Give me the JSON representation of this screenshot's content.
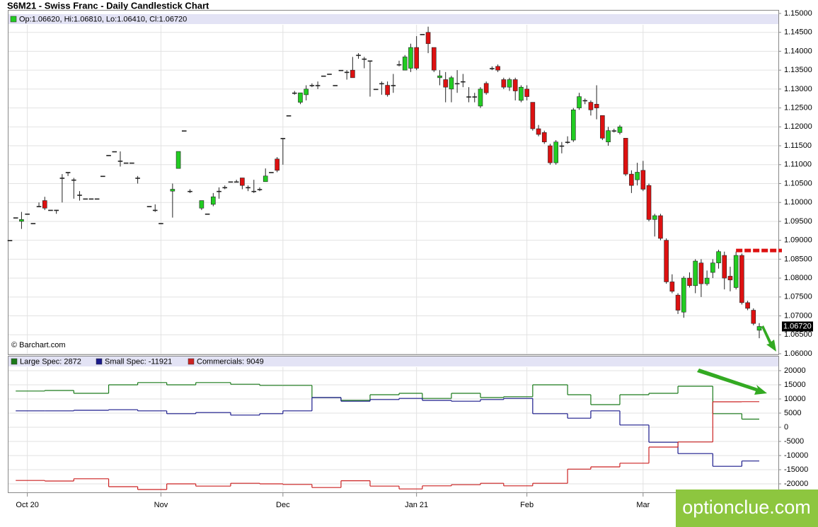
{
  "chart_data": [
    {
      "type": "candlestick",
      "title": "S6M21 - Swiss Franc - Daily Candlestick Chart",
      "header": "Op:1.06620, Hi:1.06810, Lo:1.06410, Cl:1.06720",
      "source": "© Barchart.com",
      "last_label": "1.06720",
      "up_color": "#22cc22",
      "down_color": "#dd1111",
      "grid": true,
      "resistance_line": {
        "value": 1.0873,
        "color": "#dd1111"
      },
      "categories": [
        null,
        null,
        null,
        "Oct 20",
        null,
        null,
        null,
        null,
        null,
        null,
        null,
        null,
        null,
        null,
        null,
        null,
        null,
        null,
        null,
        null,
        null,
        null,
        null,
        null,
        null,
        null,
        "Nov",
        null,
        null,
        null,
        null,
        null,
        null,
        null,
        null,
        null,
        null,
        null,
        null,
        null,
        null,
        null,
        null,
        null,
        null,
        null,
        null,
        "Dec",
        null,
        null,
        null,
        null,
        null,
        null,
        null,
        null,
        null,
        null,
        null,
        null,
        null,
        null,
        null,
        null,
        null,
        null,
        null,
        null,
        null,
        null,
        "Jan 21",
        null,
        null,
        null,
        null,
        null,
        null,
        null,
        null,
        null,
        null,
        null,
        null,
        null,
        null,
        null,
        null,
        null,
        null,
        "Feb",
        null,
        null,
        null,
        null,
        null,
        null,
        null,
        null,
        null,
        null,
        null,
        null,
        null,
        null,
        null,
        null,
        null,
        null,
        null,
        "Mar",
        null,
        null,
        null,
        null,
        null,
        null,
        null,
        null,
        null,
        null,
        null,
        null,
        null,
        null,
        null,
        null,
        null,
        null,
        null,
        null
      ],
      "open": [
        1.09,
        1.096,
        1.095,
        1.097,
        1.0945,
        1.099,
        1.1005,
        1.098,
        1.098,
        1.1065,
        1.108,
        1.106,
        1.102,
        1.101,
        1.101,
        1.101,
        1.107,
        1.1125,
        1.1135,
        1.111,
        1.1105,
        1.1105,
        1.1065,
        null,
        1.099,
        1.098,
        1.0945,
        null,
        1.103,
        1.109,
        1.119,
        1.103,
        null,
        1.0985,
        1.097,
        1.0995,
        1.103,
        1.104,
        1.1055,
        1.1055,
        1.1065,
        1.104,
        1.103,
        1.1035,
        1.1055,
        1.108,
        1.1115,
        1.117,
        1.123,
        1.129,
        1.1265,
        1.1285,
        1.131,
        1.131,
        1.1335,
        1.134,
        1.131,
        1.135,
        1.1345,
        1.135,
        1.139,
        1.138,
        1.1375,
        1.13,
        1.1315,
        1.131,
        1.131,
        1.1365,
        1.135,
        1.1355,
        1.141,
        1.1445,
        1.145,
        1.141,
        1.133,
        1.1325,
        1.13,
        1.1315,
        1.132,
        1.128,
        1.128,
        1.1255,
        1.1315,
        1.1355,
        1.136,
        1.1325,
        1.1305,
        1.1325,
        1.127,
        1.13,
        1.1265,
        1.1195,
        1.1185,
        1.115,
        1.1105,
        1.115,
        1.116,
        1.1165,
        1.125,
        1.127,
        1.1265,
        1.126,
        1.123,
        1.116,
        1.119,
        1.1185,
        1.117,
        1.1075,
        1.106,
        1.1085,
        1.1045,
        1.0955,
        1.0965,
        1.09,
        1.079,
        1.0755,
        1.071,
        1.08,
        1.078,
        1.084,
        1.0785,
        1.0815,
        1.084,
        1.086,
        1.0805,
        1.0775,
        1.086,
        1.0735,
        1.0715,
        1.0662
      ],
      "high": [
        1.09,
        1.096,
        1.0975,
        1.097,
        1.0945,
        1.1,
        1.1015,
        1.098,
        1.098,
        1.1075,
        1.108,
        1.1065,
        1.103,
        1.101,
        1.101,
        1.101,
        1.107,
        1.1125,
        1.1135,
        1.1135,
        1.1105,
        1.1105,
        1.107,
        null,
        1.099,
        1.0995,
        1.0945,
        null,
        1.105,
        1.1135,
        1.119,
        1.1035,
        null,
        1.1005,
        1.097,
        1.1025,
        1.104,
        1.1045,
        1.1055,
        1.106,
        1.1065,
        1.1045,
        1.106,
        1.104,
        1.109,
        1.108,
        1.112,
        1.117,
        1.123,
        1.1295,
        1.129,
        1.131,
        1.1315,
        1.132,
        1.1335,
        1.134,
        1.131,
        1.135,
        1.135,
        1.1385,
        1.1395,
        1.1385,
        1.1375,
        1.13,
        1.132,
        1.132,
        1.134,
        1.1375,
        1.139,
        1.142,
        1.144,
        1.1445,
        1.1465,
        1.141,
        1.135,
        1.1345,
        1.1335,
        1.135,
        1.134,
        1.1305,
        1.129,
        1.1305,
        1.132,
        1.136,
        1.1365,
        1.133,
        1.133,
        1.133,
        1.131,
        1.131,
        1.1265,
        1.1205,
        1.119,
        1.1155,
        1.1165,
        1.116,
        1.1175,
        1.125,
        1.129,
        1.1275,
        1.127,
        1.131,
        1.123,
        1.12,
        1.1195,
        1.1205,
        1.117,
        1.1085,
        1.1105,
        1.111,
        1.105,
        1.097,
        1.097,
        1.0905,
        1.081,
        1.076,
        1.0805,
        1.0815,
        1.085,
        1.085,
        1.082,
        1.085,
        1.0875,
        1.087,
        1.083,
        1.087,
        1.0865,
        1.074,
        1.072,
        1.0681
      ],
      "low": [
        1.09,
        1.096,
        1.093,
        1.097,
        1.0945,
        1.099,
        1.098,
        1.098,
        1.097,
        1.1,
        1.107,
        1.101,
        1.1005,
        1.101,
        1.101,
        1.101,
        1.107,
        1.1125,
        1.1135,
        1.1095,
        1.1105,
        1.1105,
        1.105,
        null,
        1.099,
        1.0975,
        1.0945,
        null,
        1.096,
        1.109,
        1.119,
        1.1025,
        null,
        1.098,
        1.097,
        1.099,
        1.101,
        1.1035,
        1.1055,
        1.1055,
        1.1035,
        1.103,
        1.1025,
        1.103,
        1.1055,
        1.108,
        1.108,
        1.11,
        1.123,
        1.1285,
        1.126,
        1.127,
        1.1305,
        1.13,
        1.1335,
        1.134,
        1.131,
        1.135,
        1.1325,
        1.133,
        1.138,
        1.1355,
        1.128,
        1.13,
        1.1285,
        1.128,
        1.129,
        1.136,
        1.135,
        1.1345,
        1.135,
        1.1445,
        1.1395,
        1.1345,
        1.131,
        1.1265,
        1.1265,
        1.129,
        1.1305,
        1.1265,
        1.1265,
        1.125,
        1.1285,
        1.135,
        1.1345,
        1.13,
        1.1295,
        1.127,
        1.1265,
        1.127,
        1.119,
        1.1175,
        1.1155,
        1.11,
        1.11,
        1.113,
        1.1155,
        1.116,
        1.1245,
        1.126,
        1.123,
        1.122,
        1.1165,
        1.115,
        1.1185,
        1.118,
        1.107,
        1.1025,
        1.1045,
        1.103,
        1.095,
        1.091,
        1.09,
        1.0785,
        1.076,
        1.0705,
        1.0695,
        1.0775,
        1.076,
        1.075,
        1.078,
        1.08,
        1.0825,
        1.077,
        1.0765,
        1.077,
        1.073,
        1.0715,
        1.0675,
        1.0641
      ],
      "close": [
        1.09,
        1.096,
        1.0955,
        1.097,
        1.0945,
        1.099,
        1.0985,
        1.098,
        1.098,
        1.1065,
        1.108,
        1.106,
        1.102,
        1.101,
        1.101,
        1.101,
        1.107,
        1.1125,
        1.1135,
        1.111,
        1.1105,
        1.1105,
        1.1065,
        null,
        1.099,
        1.098,
        1.0945,
        null,
        1.1035,
        1.1135,
        1.119,
        1.103,
        null,
        1.1005,
        1.097,
        1.1015,
        1.103,
        1.104,
        1.1055,
        1.1055,
        1.1045,
        1.104,
        1.103,
        1.1035,
        1.107,
        1.108,
        1.1085,
        1.117,
        1.123,
        1.129,
        1.129,
        1.13,
        1.131,
        1.131,
        1.1335,
        1.134,
        1.131,
        1.135,
        1.1345,
        1.133,
        1.139,
        1.138,
        1.1375,
        1.13,
        1.1315,
        1.1285,
        1.131,
        1.1365,
        1.1385,
        1.141,
        1.1355,
        1.1445,
        1.142,
        1.135,
        1.1335,
        1.1305,
        1.133,
        1.1315,
        1.132,
        1.128,
        1.128,
        1.13,
        1.129,
        1.1355,
        1.135,
        1.1305,
        1.1325,
        1.1295,
        1.1305,
        1.128,
        1.1195,
        1.118,
        1.116,
        1.1105,
        1.116,
        1.115,
        1.116,
        1.1245,
        1.128,
        1.127,
        1.1245,
        1.125,
        1.117,
        1.119,
        1.119,
        1.12,
        1.1075,
        1.1045,
        1.108,
        1.1035,
        1.0955,
        1.0965,
        1.0905,
        1.079,
        1.0765,
        1.0715,
        1.08,
        1.078,
        1.0845,
        1.0785,
        1.08,
        1.084,
        1.087,
        1.08,
        1.0795,
        1.086,
        1.0735,
        1.072,
        1.068,
        1.0672
      ],
      "ylim": [
        1.06,
        1.15
      ],
      "yticks": [
        {
          "value": 1.06,
          "label": "1.06000"
        },
        {
          "value": 1.065,
          "label": "1.06500"
        },
        {
          "value": 1.07,
          "label": "1.07000"
        },
        {
          "value": 1.075,
          "label": "1.07500"
        },
        {
          "value": 1.08,
          "label": "1.08000"
        },
        {
          "value": 1.085,
          "label": "1.08500"
        },
        {
          "value": 1.09,
          "label": "1.09000"
        },
        {
          "value": 1.095,
          "label": "1.09500"
        },
        {
          "value": 1.1,
          "label": "1.10000"
        },
        {
          "value": 1.105,
          "label": "1.10500"
        },
        {
          "value": 1.11,
          "label": "1.11000"
        },
        {
          "value": 1.115,
          "label": "1.11500"
        },
        {
          "value": 1.12,
          "label": "1.12000"
        },
        {
          "value": 1.125,
          "label": "1.12500"
        },
        {
          "value": 1.13,
          "label": "1.13000"
        },
        {
          "value": 1.135,
          "label": "1.13500"
        },
        {
          "value": 1.14,
          "label": "1.14000"
        },
        {
          "value": 1.145,
          "label": "1.14500"
        },
        {
          "value": 1.15,
          "label": "1.15000"
        }
      ]
    },
    {
      "type": "line",
      "step": true,
      "grid": true,
      "x": [
        1,
        6,
        11,
        17,
        22,
        27,
        32,
        38,
        43,
        47,
        52,
        57,
        62,
        67,
        71,
        76,
        81,
        85,
        90,
        96,
        100,
        105,
        110,
        115,
        121,
        126
      ],
      "series": [
        {
          "name": "Large Spec: 2872",
          "color": "#1a7a1a",
          "values": [
            12800,
            13000,
            12000,
            15000,
            15800,
            15000,
            15800,
            15200,
            14800,
            14800,
            10500,
            9500,
            11500,
            12000,
            10200,
            12000,
            10500,
            10800,
            15000,
            11500,
            8000,
            11500,
            12000,
            14500,
            4800,
            2872
          ]
        },
        {
          "name": "Small Spec: -11921",
          "color": "#1a1a8c",
          "values": [
            5800,
            5800,
            6000,
            6200,
            5800,
            4800,
            5200,
            4300,
            4800,
            5800,
            10500,
            9200,
            9800,
            10200,
            9500,
            9200,
            9800,
            10200,
            4800,
            3200,
            5800,
            800,
            -5300,
            -9300,
            -13800,
            -11921
          ]
        },
        {
          "name": "Commercials: 9049",
          "color": "#cc2222",
          "values": [
            -18800,
            -19000,
            -18200,
            -21000,
            -22000,
            -20000,
            -20800,
            -19800,
            -20000,
            -20200,
            -21300,
            -18900,
            -20800,
            -21800,
            -20700,
            -20300,
            -19800,
            -20700,
            -19800,
            -14800,
            -14000,
            -12700,
            -7000,
            -5200,
            9000,
            9049
          ]
        }
      ],
      "ylim": [
        -23000,
        21000
      ],
      "yticks": [
        -20000,
        -15000,
        -10000,
        -5000,
        0,
        5000,
        10000,
        15000,
        20000
      ]
    }
  ],
  "watermark": "optionclue.com"
}
